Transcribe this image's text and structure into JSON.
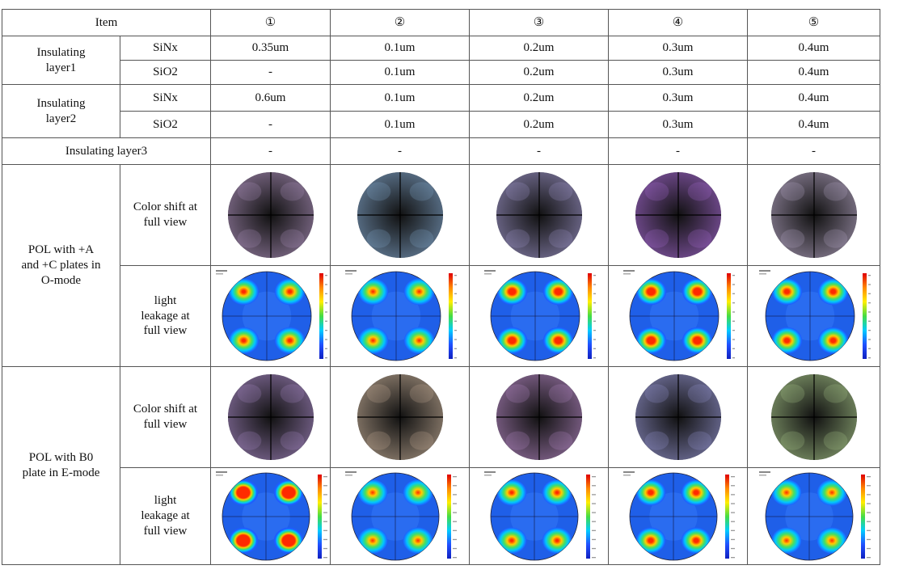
{
  "header": {
    "item": "Item",
    "samples": [
      "①",
      "②",
      "③",
      "④",
      "⑤"
    ]
  },
  "rows": {
    "layer1": {
      "label": "Insulating layer1",
      "sinx": "SiNx",
      "sio2": "SiO2",
      "sinx_values": [
        "0.35um",
        "0.1um",
        "0.2um",
        "0.3um",
        "0.4um"
      ],
      "sio2_values": [
        "-",
        "0.1um",
        "0.2um",
        "0.3um",
        "0.4um"
      ]
    },
    "layer2": {
      "label": "Insulating layer2",
      "sinx": "SiNx",
      "sio2": "SiO2",
      "sinx_values": [
        "0.6um",
        "0.1um",
        "0.2um",
        "0.3um",
        "0.4um"
      ],
      "sio2_values": [
        "-",
        "0.1um",
        "0.2um",
        "0.3um",
        "0.4um"
      ]
    },
    "layer3": {
      "label": "Insulating layer3",
      "values": [
        "-",
        "-",
        "-",
        "-",
        "-"
      ]
    }
  },
  "groups": {
    "omode": {
      "label": "POL with +A and +C plates in O-mode",
      "color_shift": "Color shift at full view",
      "light_leakage": "light leakage at full view"
    },
    "emode": {
      "label": "POL with B0 plate in E-mode",
      "color_shift": "Color shift at full view",
      "light_leakage": "light leakage at full view"
    }
  },
  "images": {
    "omode_color_tints": [
      "#b89ac8",
      "#8ab0d8",
      "#a9a0d8",
      "#b070e0",
      "#c0b0d0"
    ],
    "omode_leak_intensity": [
      0.8,
      0.95,
      0.55,
      0.5,
      0.7
    ],
    "emode_color_tints": [
      "#b090d0",
      "#d0b8a0",
      "#c090d0",
      "#a0a0e0",
      "#b0d090"
    ],
    "emode_leak_intensity": [
      0.15,
      1.0,
      0.85,
      0.7,
      1.0
    ]
  }
}
